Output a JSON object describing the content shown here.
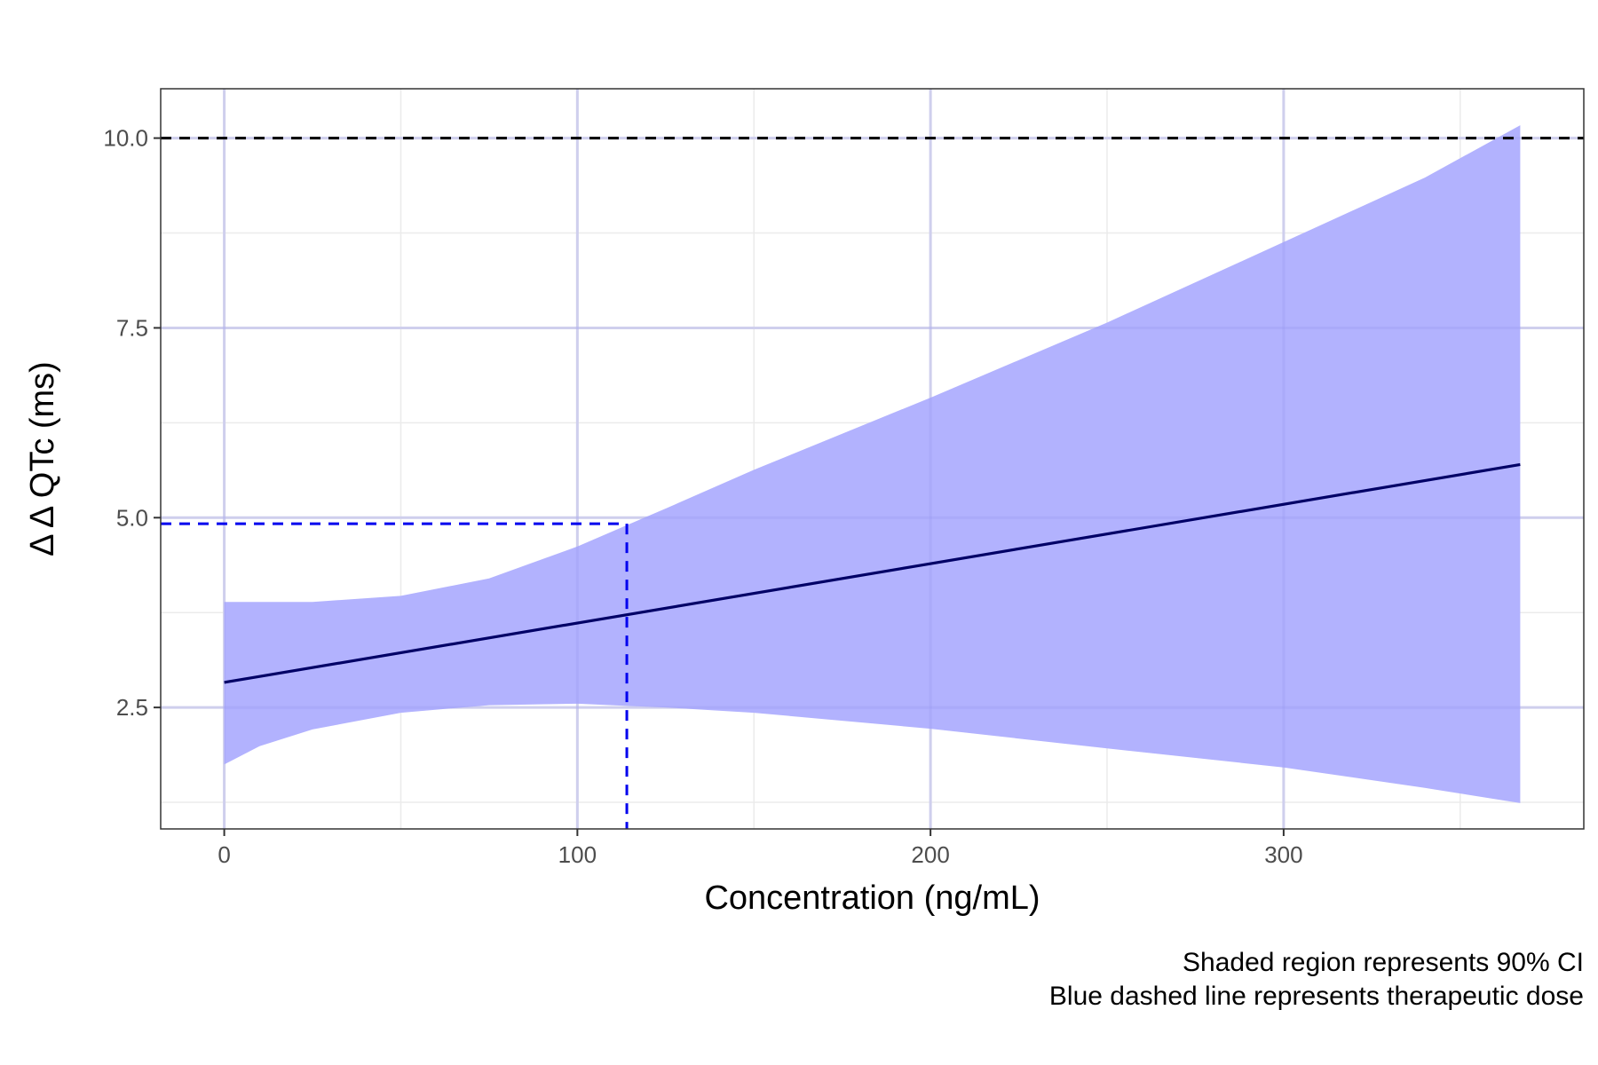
{
  "chart_data": {
    "type": "line",
    "xlabel": "Concentration (ng/mL)",
    "ylabel": "Δ Δ QTc (ms)",
    "xlim": [
      -18,
      385
    ],
    "ylim": [
      0.9,
      10.65
    ],
    "x_ticks": [
      0,
      100,
      200,
      300
    ],
    "x_tick_labels": [
      "0",
      "100",
      "200",
      "300"
    ],
    "y_ticks": [
      2.5,
      5.0,
      7.5,
      10.0
    ],
    "y_tick_labels": [
      "2.5",
      "5.0",
      "7.5",
      "10.0"
    ],
    "x_minor_ticks": [
      50,
      150,
      250,
      350
    ],
    "y_minor_ticks": [
      1.25,
      3.75,
      6.25,
      8.75
    ],
    "grid": true,
    "series": [
      {
        "kind": "line",
        "x": [
          0,
          367
        ],
        "y": [
          2.83,
          5.7
        ]
      },
      {
        "kind": "ribbon",
        "x": [
          0,
          10,
          25,
          50,
          75,
          100,
          114,
          125,
          150,
          200,
          250,
          300,
          340,
          367
        ],
        "lower": [
          1.75,
          1.99,
          2.21,
          2.43,
          2.53,
          2.55,
          2.52,
          2.5,
          2.43,
          2.22,
          1.96,
          1.71,
          1.44,
          1.24
        ],
        "upper": [
          3.89,
          3.89,
          3.89,
          3.97,
          4.2,
          4.62,
          4.9,
          5.12,
          5.63,
          6.58,
          7.57,
          8.63,
          9.48,
          10.17
        ]
      }
    ],
    "reference_lines": [
      {
        "kind": "hline",
        "y": 10.0,
        "style": "dashed"
      },
      {
        "kind": "therapeutic",
        "x": 114,
        "y": 4.92,
        "style": "dashed"
      }
    ],
    "caption": [
      "Shaded region represents 90% CI",
      "Blue dashed line represents therapeutic dose"
    ],
    "colors": {
      "ribbon": "#b2b2fe",
      "fit_line": "#000066",
      "threshold_line": "#000000",
      "therapeutic_line": "#0000ee",
      "grid": "#ebebeb",
      "panel_border": "#333333"
    }
  }
}
